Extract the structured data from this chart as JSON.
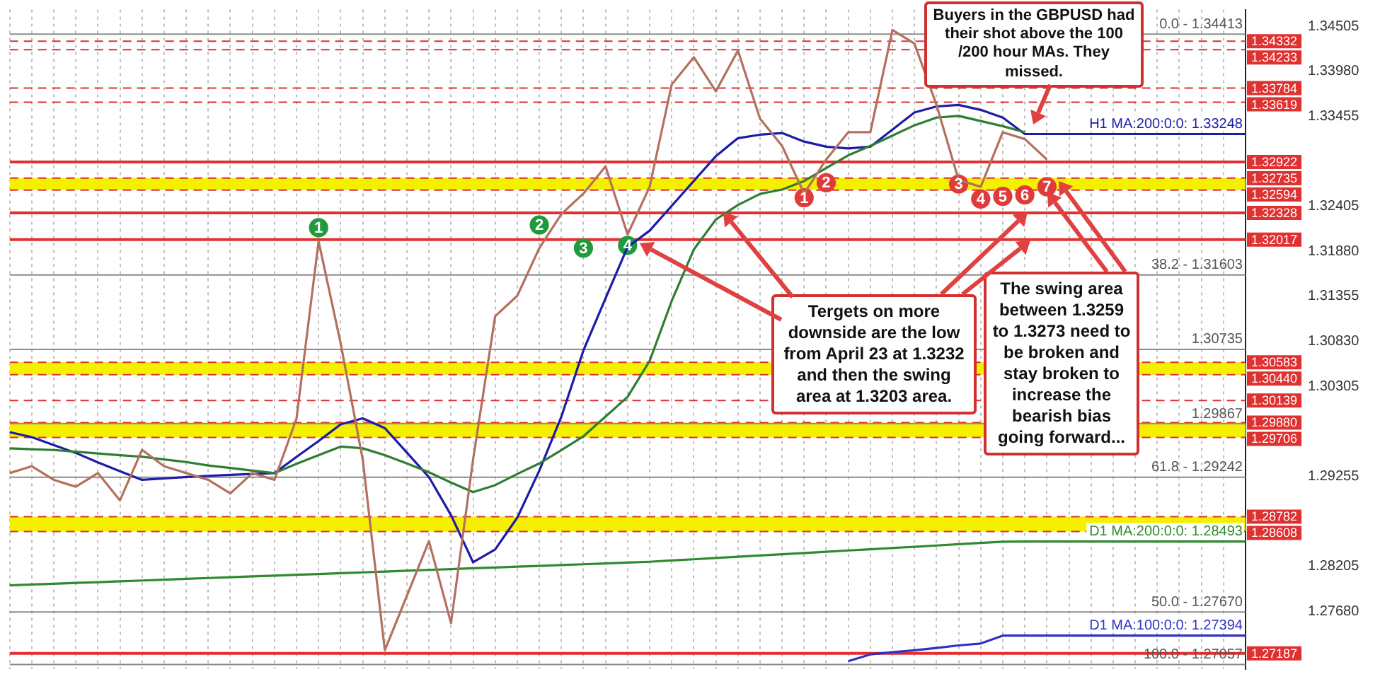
{
  "chart_data": {
    "type": "line",
    "categories": [
      null,
      null,
      null,
      null,
      null,
      null,
      null,
      null,
      null,
      null,
      null,
      null,
      null,
      null,
      null,
      null,
      null,
      null,
      null,
      null,
      null,
      null,
      null,
      null,
      null,
      null,
      null,
      null,
      null,
      null,
      null,
      null,
      null,
      null,
      null,
      null,
      null,
      null,
      null,
      null,
      null,
      null,
      null,
      null,
      null,
      null,
      null,
      null,
      null,
      null,
      null,
      null,
      null,
      null,
      null,
      null,
      null
    ],
    "annotations": [
      "Buyers in the GBPUSD had their shot above the 100 /200 hour MAs.  They missed.",
      "Tergets on more downside are the low from April 23 at 1.3232 and then the swing area at 1.3203 area.",
      "The swing area between 1.3259 to 1.3273 need to be broken and stay broken to increase the bearish bias going forward...",
      {
        "text": "1",
        "y": 1.32155
      },
      {
        "text": "2",
        "y": 1.32187
      },
      {
        "text": "3",
        "y": 1.31916
      },
      {
        "text": "4",
        "y": 1.31948
      },
      {
        "text": "1",
        "y": 1.32505
      },
      {
        "text": "2",
        "y": 1.3268
      },
      {
        "text": "3",
        "y": 1.32664
      },
      {
        "text": "4",
        "y": 1.3249
      },
      {
        "text": "5",
        "y": 1.32521
      },
      {
        "text": "6",
        "y": 1.32537
      },
      {
        "text": "7",
        "y": 1.32632
      },
      {
        "text": "0.0 - 1.34413",
        "y": 1.34413
      },
      {
        "text": "38.2 - 1.31603",
        "y": 1.31603
      },
      {
        "text": "1.30735",
        "y": 1.30735
      },
      {
        "text": "1.29867",
        "y": 1.29867
      },
      {
        "text": "61.8 - 1.29242",
        "y": 1.29242
      },
      {
        "text": "50.0 - 1.27670",
        "y": 1.2767
      },
      {
        "text": "100.0 - 1.27057",
        "y": 1.27057
      }
    ],
    "ylim": [
      1.27,
      1.347
    ],
    "yticks": [
      1.34505,
      {
        "value": 1.3398,
        "label": "1.33980"
      },
      1.33455,
      1.32405,
      {
        "value": 1.3188,
        "label": "1.31880"
      },
      1.31355,
      {
        "value": 1.3083,
        "label": "1.30830"
      },
      1.30305,
      1.29255,
      1.28205,
      {
        "value": 1.2768,
        "label": "1.27680"
      }
    ],
    "tick_labels": "y",
    "grid": "x",
    "legend": "right",
    "marker": "none",
    "bands": [
      {
        "axis": "y",
        "from": 1.32594,
        "to": 1.32735,
        "color": "#f5f000"
      },
      {
        "axis": "y",
        "from": 1.3044,
        "to": 1.30583,
        "color": "#f5f000"
      },
      {
        "axis": "y",
        "from": 1.29706,
        "to": 1.2988,
        "color": "#f5f000"
      },
      {
        "axis": "y",
        "from": 1.28608,
        "to": 1.28782,
        "color": "#f5f000"
      }
    ],
    "ref_lines": [
      {
        "axis": "y",
        "value": 1.34332,
        "label": "1.34332",
        "color": "#e03030",
        "line_style": "dashed"
      },
      {
        "axis": "y",
        "value": 1.34233,
        "label": "1.34233",
        "color": "#e03030",
        "line_style": "dashed"
      },
      {
        "axis": "y",
        "value": 1.33784,
        "label": "1.33784",
        "color": "#e03030",
        "line_style": "dashed"
      },
      {
        "axis": "y",
        "value": 1.33619,
        "label": "1.33619",
        "color": "#e03030",
        "line_style": "dashed"
      },
      {
        "axis": "y",
        "value": 1.32922,
        "label": "1.32922",
        "color": "#e03030",
        "line_style": "solid"
      },
      {
        "axis": "y",
        "value": 1.32735,
        "label": "1.32735",
        "color": "#e03030",
        "line_style": "dashed"
      },
      {
        "axis": "y",
        "value": 1.32594,
        "label": "1.32594",
        "color": "#e03030",
        "line_style": "dashed"
      },
      {
        "axis": "y",
        "value": 1.32328,
        "label": "1.32328",
        "color": "#e03030",
        "line_style": "solid"
      },
      {
        "axis": "y",
        "value": 1.32017,
        "label": "1.32017",
        "color": "#e03030",
        "line_style": "solid"
      },
      {
        "axis": "y",
        "value": 1.30583,
        "label": "1.30583",
        "color": "#e03030",
        "line_style": "dashed"
      },
      {
        "axis": "y",
        "value": 1.3044,
        "label": "1.30440",
        "color": "#e03030",
        "line_style": "dashed"
      },
      {
        "axis": "y",
        "value": 1.30139,
        "label": "1.30139",
        "color": "#e03030",
        "line_style": "dashed"
      },
      {
        "axis": "y",
        "value": 1.2988,
        "label": "1.29880",
        "color": "#e03030",
        "line_style": "dashed"
      },
      {
        "axis": "y",
        "value": 1.29706,
        "label": "1.29706",
        "color": "#e03030",
        "line_style": "dashed"
      },
      {
        "axis": "y",
        "value": 1.28782,
        "label": "1.28782",
        "color": "#e03030",
        "line_style": "dashed"
      },
      {
        "axis": "y",
        "value": 1.28608,
        "label": "1.28608",
        "color": "#e03030",
        "line_style": "dashed"
      },
      {
        "axis": "y",
        "value": 1.27187,
        "label": "1.27187",
        "color": "#e03030",
        "line_style": "solid"
      },
      {
        "axis": "y",
        "value": 1.34413,
        "line_style": "solid"
      },
      {
        "axis": "y",
        "value": 1.31603,
        "line_style": "solid"
      },
      {
        "axis": "y",
        "value": 1.30735,
        "line_style": "solid"
      },
      {
        "axis": "y",
        "value": 1.29867,
        "line_style": "solid"
      },
      {
        "axis": "y",
        "value": 1.29242,
        "line_style": "solid"
      },
      {
        "axis": "y",
        "value": 1.2767,
        "line_style": "solid"
      },
      {
        "axis": "y",
        "value": 1.27057,
        "line_style": "solid"
      }
    ],
    "series": [
      {
        "type": "line",
        "color": "#b4705e",
        "values": [
          1.29291,
          1.29371,
          1.29212,
          1.29132,
          1.29291,
          1.28973,
          1.29562,
          1.29371,
          1.29291,
          1.29212,
          1.29053,
          1.29291,
          1.29212,
          1.29928,
          1.31996,
          1.30803,
          1.2945,
          1.27223,
          1.27859,
          1.28496,
          1.27541,
          1.2945,
          1.31121,
          1.3136,
          1.31916,
          1.32314,
          1.32553,
          1.32871,
          1.32076,
          1.32632,
          1.33826,
          1.34144,
          1.33746,
          1.34223,
          1.33428,
          1.3311,
          1.32553,
          1.32951,
          1.33269,
          1.33269,
          1.34462,
          1.34303,
          1.33587,
          1.32712,
          1.32632,
          1.33269,
          1.33189,
          1.32951,
          null,
          null,
          null,
          null,
          null,
          null,
          null,
          null,
          null
        ]
      },
      {
        "type": "line",
        "color": "#2e7d32",
        "values": [
          1.2958,
          1.2957,
          1.2956,
          1.2954,
          1.2952,
          1.295,
          1.29482,
          1.2945,
          1.2942,
          1.2938,
          1.2935,
          1.2932,
          1.29291,
          1.294,
          1.295,
          1.296,
          1.2958,
          1.295,
          1.29403,
          1.293,
          1.2918,
          1.29069,
          1.2915,
          1.2928,
          1.29403,
          1.2956,
          1.29721,
          1.2995,
          1.3018,
          1.306,
          1.313,
          1.319,
          1.3225,
          1.3242,
          1.3255,
          1.326,
          1.327,
          1.3285,
          1.33,
          1.3311,
          1.3323,
          1.3335,
          1.3344,
          1.3346,
          1.334,
          1.3334,
          1.33269,
          null,
          null,
          null,
          null,
          null,
          null,
          null,
          null,
          null,
          null
        ]
      },
      {
        "type": "line",
        "name": "H1 MA:200:0:0: 1.33248",
        "color": "#1c1ca8",
        "values": [
          1.29769,
          1.29711,
          1.29618,
          1.29526,
          1.29415,
          1.29312,
          1.29212,
          1.29228,
          1.29245,
          1.29259,
          1.2927,
          1.2928,
          1.29291,
          1.2948,
          1.29665,
          1.2986,
          1.2993,
          1.29816,
          1.2953,
          1.29244,
          1.288,
          1.2825,
          1.284,
          1.2877,
          1.2932,
          1.2995,
          1.30723,
          1.3133,
          1.3193,
          1.3212,
          1.3241,
          1.327,
          1.3299,
          1.332,
          1.3324,
          1.3326,
          1.3316,
          1.331,
          1.3308,
          1.331,
          1.333,
          1.335,
          1.3357,
          1.33587,
          1.3353,
          1.3344,
          1.33248,
          1.33248,
          1.33248,
          1.33248,
          1.33248,
          1.33248,
          1.33248,
          1.33248,
          1.33248,
          1.33248,
          1.33248
        ]
      },
      {
        "type": "line",
        "name": "D1 MA:200:0:0: 1.28493",
        "color": "#2f8a2f",
        "values": [
          1.2798,
          1.2799,
          1.27999,
          1.28009,
          1.28018,
          1.28028,
          1.28037,
          1.28047,
          1.28056,
          1.28066,
          1.28075,
          1.28085,
          1.28094,
          1.28104,
          1.28113,
          1.28123,
          1.28132,
          1.28142,
          1.28151,
          1.28161,
          1.2817,
          1.2818,
          1.28189,
          1.28199,
          1.28208,
          1.28218,
          1.28227,
          1.28237,
          1.28246,
          1.28256,
          1.28271,
          1.28285,
          1.283,
          1.28315,
          1.28329,
          1.28344,
          1.28358,
          1.28373,
          1.28388,
          1.28402,
          1.28417,
          1.28431,
          1.28446,
          1.28461,
          1.28475,
          1.2849,
          1.28493,
          1.28493,
          1.28493,
          1.28493,
          1.28493,
          1.28493,
          1.28493,
          1.28493,
          1.28493,
          1.28493,
          1.28493
        ]
      },
      {
        "type": "line",
        "name": "D1 MA:100:0:0: 1.27394",
        "color": "#3030c8",
        "values": [
          null,
          null,
          null,
          null,
          null,
          null,
          null,
          null,
          null,
          null,
          null,
          null,
          null,
          null,
          null,
          null,
          null,
          null,
          null,
          null,
          null,
          null,
          null,
          null,
          null,
          null,
          null,
          null,
          null,
          null,
          null,
          null,
          null,
          null,
          null,
          null,
          null,
          null,
          1.27096,
          1.27175,
          1.272,
          1.27223,
          1.2725,
          1.2728,
          1.27302,
          1.27394,
          1.27394,
          1.27394,
          1.27394,
          1.27394,
          1.27394,
          1.27394,
          1.27394,
          1.27394,
          1.27394,
          1.27394,
          1.27394
        ]
      },
      {
        "type": "scatter",
        "marker": "circle",
        "color": "#1f9a3c",
        "values": [
          null,
          null,
          null,
          null,
          null,
          null,
          null,
          null,
          null,
          null,
          null,
          null,
          null,
          null,
          1.32155,
          null,
          null,
          null,
          null,
          null,
          null,
          null,
          null,
          null,
          1.32187,
          null,
          1.31916,
          null,
          1.31948,
          null,
          null,
          null,
          null,
          null,
          null,
          null,
          null,
          null,
          null,
          null,
          null,
          null,
          null,
          null,
          null,
          null,
          null,
          null,
          null,
          null,
          null,
          null,
          null,
          null,
          null,
          null,
          null
        ]
      },
      {
        "type": "scatter",
        "marker": "circle",
        "color": "#e03a3a",
        "values": [
          null,
          null,
          null,
          null,
          null,
          null,
          null,
          null,
          null,
          null,
          null,
          null,
          null,
          null,
          null,
          null,
          null,
          null,
          null,
          null,
          null,
          null,
          null,
          null,
          null,
          null,
          null,
          null,
          null,
          null,
          null,
          null,
          null,
          null,
          null,
          null,
          1.32505,
          1.3268,
          null,
          null,
          null,
          null,
          null,
          1.32664,
          1.3249,
          1.32521,
          1.32537,
          1.32632,
          null,
          null,
          null,
          null,
          null,
          null,
          null,
          null,
          null
        ]
      }
    ]
  }
}
